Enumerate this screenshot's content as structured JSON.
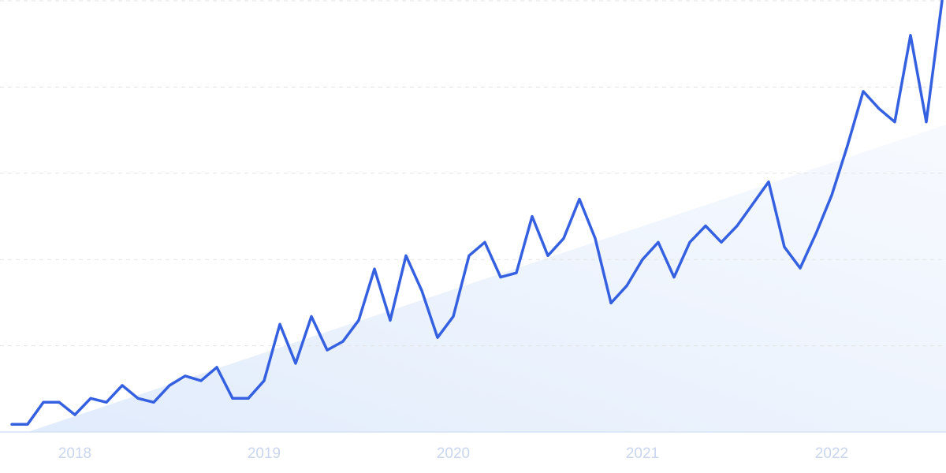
{
  "chart_data": {
    "type": "line",
    "categories": [
      null,
      null,
      null,
      null,
      "2018",
      null,
      null,
      null,
      null,
      null,
      null,
      null,
      null,
      null,
      null,
      null,
      "2019",
      null,
      null,
      null,
      null,
      null,
      null,
      null,
      null,
      null,
      null,
      null,
      "2020",
      null,
      null,
      null,
      null,
      null,
      null,
      null,
      null,
      null,
      null,
      null,
      "2021",
      null,
      null,
      null,
      null,
      null,
      null,
      null,
      null,
      null,
      null,
      null,
      "2022",
      null,
      null,
      null,
      null,
      null,
      null,
      null
    ],
    "series": [
      {
        "color": "#3561e0",
        "values": [
          1.8,
          1.8,
          6.9,
          6.9,
          4.0,
          7.8,
          6.9,
          10.8,
          7.8,
          6.9,
          10.8,
          13.0,
          11.9,
          15.0,
          7.8,
          7.8,
          11.9,
          25.0,
          15.9,
          26.8,
          19.0,
          21.0,
          25.9,
          37.8,
          25.9,
          40.9,
          32.8,
          21.9,
          26.8,
          40.9,
          44.0,
          35.9,
          36.9,
          50.0,
          40.9,
          44.9,
          54.0,
          44.9,
          29.9,
          33.9,
          40.0,
          44.0,
          35.9,
          44.0,
          47.8,
          44.0,
          47.8,
          52.9,
          58.0,
          42.9,
          38.0,
          46.0,
          54.9,
          66.4,
          79.0,
          75.0,
          71.9,
          92.0,
          71.9,
          100
        ]
      }
    ],
    "ylim": [
      0,
      100
    ],
    "yticks": [
      0,
      20,
      40,
      60,
      80,
      100
    ],
    "grid": true
  }
}
